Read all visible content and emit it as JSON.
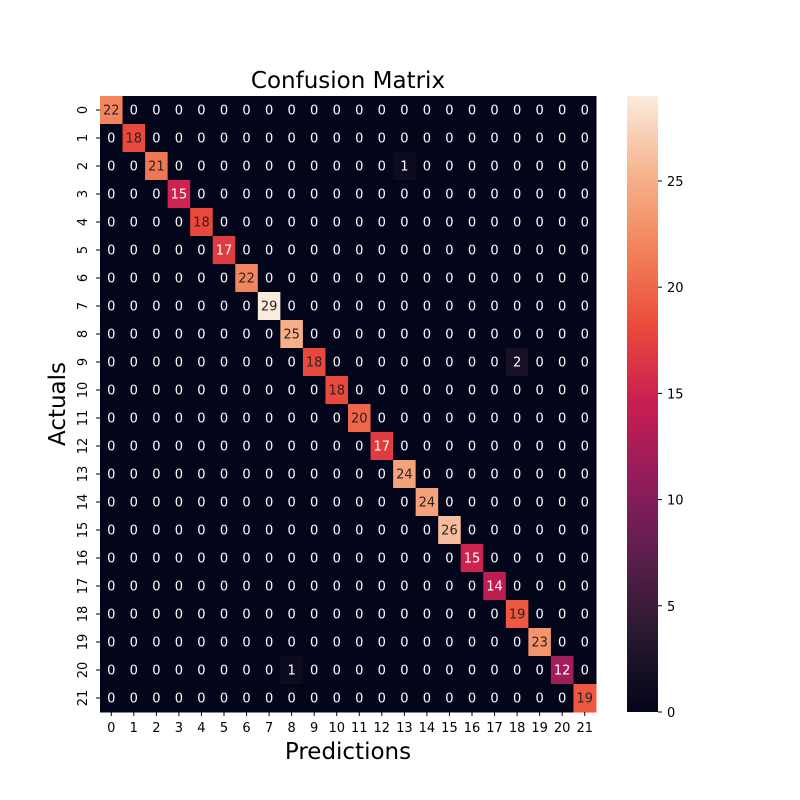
{
  "chart_data": {
    "type": "heatmap",
    "title": "Confusion Matrix",
    "xlabel": "Predictions",
    "ylabel": "Actuals",
    "x_categories": [
      "0",
      "1",
      "2",
      "3",
      "4",
      "5",
      "6",
      "7",
      "8",
      "9",
      "10",
      "11",
      "12",
      "13",
      "14",
      "15",
      "16",
      "17",
      "18",
      "19",
      "20",
      "21"
    ],
    "y_categories": [
      "0",
      "1",
      "2",
      "3",
      "4",
      "5",
      "6",
      "7",
      "8",
      "9",
      "10",
      "11",
      "12",
      "13",
      "14",
      "15",
      "16",
      "17",
      "18",
      "19",
      "20",
      "21"
    ],
    "matrix": [
      [
        22,
        0,
        0,
        0,
        0,
        0,
        0,
        0,
        0,
        0,
        0,
        0,
        0,
        0,
        0,
        0,
        0,
        0,
        0,
        0,
        0,
        0
      ],
      [
        0,
        18,
        0,
        0,
        0,
        0,
        0,
        0,
        0,
        0,
        0,
        0,
        0,
        0,
        0,
        0,
        0,
        0,
        0,
        0,
        0,
        0
      ],
      [
        0,
        0,
        21,
        0,
        0,
        0,
        0,
        0,
        0,
        0,
        0,
        0,
        0,
        1,
        0,
        0,
        0,
        0,
        0,
        0,
        0,
        0
      ],
      [
        0,
        0,
        0,
        15,
        0,
        0,
        0,
        0,
        0,
        0,
        0,
        0,
        0,
        0,
        0,
        0,
        0,
        0,
        0,
        0,
        0,
        0
      ],
      [
        0,
        0,
        0,
        0,
        18,
        0,
        0,
        0,
        0,
        0,
        0,
        0,
        0,
        0,
        0,
        0,
        0,
        0,
        0,
        0,
        0,
        0
      ],
      [
        0,
        0,
        0,
        0,
        0,
        17,
        0,
        0,
        0,
        0,
        0,
        0,
        0,
        0,
        0,
        0,
        0,
        0,
        0,
        0,
        0,
        0
      ],
      [
        0,
        0,
        0,
        0,
        0,
        0,
        22,
        0,
        0,
        0,
        0,
        0,
        0,
        0,
        0,
        0,
        0,
        0,
        0,
        0,
        0,
        0
      ],
      [
        0,
        0,
        0,
        0,
        0,
        0,
        0,
        29,
        0,
        0,
        0,
        0,
        0,
        0,
        0,
        0,
        0,
        0,
        0,
        0,
        0,
        0
      ],
      [
        0,
        0,
        0,
        0,
        0,
        0,
        0,
        0,
        25,
        0,
        0,
        0,
        0,
        0,
        0,
        0,
        0,
        0,
        0,
        0,
        0,
        0
      ],
      [
        0,
        0,
        0,
        0,
        0,
        0,
        0,
        0,
        0,
        18,
        0,
        0,
        0,
        0,
        0,
        0,
        0,
        0,
        2,
        0,
        0,
        0
      ],
      [
        0,
        0,
        0,
        0,
        0,
        0,
        0,
        0,
        0,
        0,
        18,
        0,
        0,
        0,
        0,
        0,
        0,
        0,
        0,
        0,
        0,
        0
      ],
      [
        0,
        0,
        0,
        0,
        0,
        0,
        0,
        0,
        0,
        0,
        0,
        20,
        0,
        0,
        0,
        0,
        0,
        0,
        0,
        0,
        0,
        0
      ],
      [
        0,
        0,
        0,
        0,
        0,
        0,
        0,
        0,
        0,
        0,
        0,
        0,
        17,
        0,
        0,
        0,
        0,
        0,
        0,
        0,
        0,
        0
      ],
      [
        0,
        0,
        0,
        0,
        0,
        0,
        0,
        0,
        0,
        0,
        0,
        0,
        0,
        24,
        0,
        0,
        0,
        0,
        0,
        0,
        0,
        0
      ],
      [
        0,
        0,
        0,
        0,
        0,
        0,
        0,
        0,
        0,
        0,
        0,
        0,
        0,
        0,
        24,
        0,
        0,
        0,
        0,
        0,
        0,
        0
      ],
      [
        0,
        0,
        0,
        0,
        0,
        0,
        0,
        0,
        0,
        0,
        0,
        0,
        0,
        0,
        0,
        26,
        0,
        0,
        0,
        0,
        0,
        0
      ],
      [
        0,
        0,
        0,
        0,
        0,
        0,
        0,
        0,
        0,
        0,
        0,
        0,
        0,
        0,
        0,
        0,
        15,
        0,
        0,
        0,
        0,
        0
      ],
      [
        0,
        0,
        0,
        0,
        0,
        0,
        0,
        0,
        0,
        0,
        0,
        0,
        0,
        0,
        0,
        0,
        0,
        14,
        0,
        0,
        0,
        0
      ],
      [
        0,
        0,
        0,
        0,
        0,
        0,
        0,
        0,
        0,
        0,
        0,
        0,
        0,
        0,
        0,
        0,
        0,
        0,
        19,
        0,
        0,
        0
      ],
      [
        0,
        0,
        0,
        0,
        0,
        0,
        0,
        0,
        0,
        0,
        0,
        0,
        0,
        0,
        0,
        0,
        0,
        0,
        0,
        23,
        0,
        0
      ],
      [
        0,
        0,
        0,
        0,
        0,
        0,
        0,
        0,
        1,
        0,
        0,
        0,
        0,
        0,
        0,
        0,
        0,
        0,
        0,
        0,
        12,
        0
      ],
      [
        0,
        0,
        0,
        0,
        0,
        0,
        0,
        0,
        0,
        0,
        0,
        0,
        0,
        0,
        0,
        0,
        0,
        0,
        0,
        0,
        0,
        19
      ]
    ],
    "value_range": [
      0,
      29
    ],
    "colorbar_ticks": [
      0,
      5,
      10,
      15,
      20,
      25
    ],
    "colormap": "rocket",
    "grid": false,
    "legend": "colorbar-right"
  }
}
